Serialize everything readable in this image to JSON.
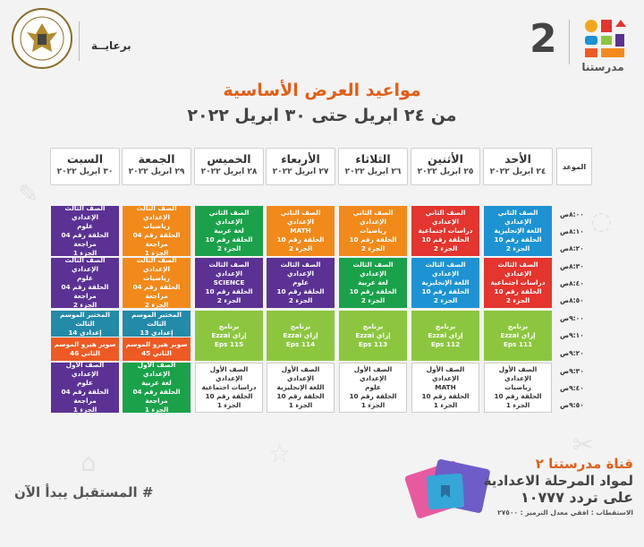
{
  "header": {
    "sponsor_label": "برعايــة",
    "brand_number": "2",
    "brand_name": "مدرستنا",
    "title": "مواعيد العرض الأساسية",
    "subtitle": "من ٢٤ ابريل حتى ٣٠ ابريل ٢٠٢٢"
  },
  "time_header": "الموعد",
  "days": [
    {
      "name": "الأحد",
      "date": "٢٤ ابريل ٢٠٢٢"
    },
    {
      "name": "الأثنين",
      "date": "٢٥ ابريل ٢٠٢٢"
    },
    {
      "name": "الثلاثاء",
      "date": "٢٦ ابريل ٢٠٢٢"
    },
    {
      "name": "الأربعاء",
      "date": "٢٧ ابريل ٢٠٢٢"
    },
    {
      "name": "الخميس",
      "date": "٢٨ ابريل ٢٠٢٢"
    },
    {
      "name": "الجمعة",
      "date": "٢٩ ابريل ٢٠٢٢"
    },
    {
      "name": "السبت",
      "date": "٣٠ ابريل ٢٠٢٢"
    }
  ],
  "times": [
    "٨:٠٠ص",
    "٨:١٠ص",
    "٨:٢٠ص",
    "٨:٣٠ص",
    "٨:٤٠ص",
    "٨:٥٠ص",
    "٩:٠٠ص",
    "٩:١٠ص",
    "٩:٢٠ص",
    "٩:٣٠ص",
    "٩:٤٠ص",
    "٩:٥٠ص"
  ],
  "slots": [
    {
      "cells": [
        {
          "color": "blue",
          "lines": [
            "الصف الثاني الإعدادي",
            "اللغة الإنجليزية",
            "الحلقة رقم 10",
            "الجزء 2"
          ]
        },
        {
          "color": "red",
          "lines": [
            "الصف الثاني الإعدادي",
            "دراسات اجتماعية",
            "الحلقة رقم 10",
            "الجزء 2"
          ]
        },
        {
          "color": "orange",
          "lines": [
            "الصف الثاني الإعدادي",
            "رياضيات",
            "الحلقة رقم 10",
            "الجزء 2"
          ]
        },
        {
          "color": "orange",
          "lines": [
            "الصف الثاني الإعدادي",
            "MATH",
            "الحلقة رقم 10",
            "الجزء 2"
          ]
        },
        {
          "color": "green",
          "lines": [
            "الصف الثاني الإعدادي",
            "لغة عربية",
            "الحلقة رقم 10",
            "الجزء 2"
          ]
        },
        {
          "color": "orange",
          "lines": [
            "الصف الثالث الإعدادي",
            "رياضيات",
            "الحلقة رقم 04 مراجعة",
            "الجزء 1"
          ]
        },
        {
          "color": "purple",
          "lines": [
            "الصف الثالث الإعدادي",
            "علوم",
            "الحلقة رقم 04 مراجعة",
            "الجزء 1"
          ]
        }
      ]
    },
    {
      "cells": [
        {
          "color": "red",
          "lines": [
            "الصف الثالث الإعدادي",
            "دراسات اجتماعية",
            "الحلقة رقم 10",
            "الجزء 2"
          ]
        },
        {
          "color": "blue",
          "lines": [
            "الصف الثالث الإعدادي",
            "اللغة الإنجليزية",
            "الحلقة رقم 10",
            "الجزء 2"
          ]
        },
        {
          "color": "green",
          "lines": [
            "الصف الثالث الإعدادي",
            "لغة عربية",
            "الحلقة رقم 10",
            "الجزء 2"
          ]
        },
        {
          "color": "purple",
          "lines": [
            "الصف الثالث الإعدادي",
            "علوم",
            "الحلقة رقم 10",
            "الجزء 2"
          ]
        },
        {
          "color": "purple",
          "lines": [
            "الصف الثالث الإعدادي",
            "SCIENCE",
            "الحلقة رقم 10",
            "الجزء 2"
          ]
        },
        {
          "color": "orange",
          "lines": [
            "الصف الثالث الإعدادي",
            "رياضيات",
            "الحلقة رقم 04 مراجعة",
            "الجزء 2"
          ]
        },
        {
          "color": "purple",
          "lines": [
            "الصف الثالث الإعدادي",
            "علوم",
            "الحلقة رقم 04 مراجعة",
            "الجزء 2"
          ]
        }
      ]
    },
    {
      "cells": [
        {
          "color": "lime",
          "lines": [
            "برنامج",
            "إزاي Ezzai",
            "Eps 111"
          ]
        },
        {
          "color": "lime",
          "lines": [
            "برنامج",
            "إزاي Ezzai",
            "Eps 112"
          ]
        },
        {
          "color": "lime",
          "lines": [
            "برنامج",
            "إزاي Ezzai",
            "Eps 113"
          ]
        },
        {
          "color": "lime",
          "lines": [
            "برنامج",
            "إزاي Ezzai",
            "Eps 114"
          ]
        },
        {
          "color": "lime",
          "lines": [
            "برنامج",
            "إزاي Ezzai",
            "Eps 115"
          ]
        },
        {
          "split": true,
          "top": {
            "color": "teal",
            "lines": [
              "المختبر الموسم الثالث",
              "إعدادي 13"
            ]
          },
          "bottom": {
            "color": "dorange",
            "lines": [
              "سوبر هيرو الموسم",
              "الثاني 45"
            ]
          }
        },
        {
          "split": true,
          "top": {
            "color": "teal",
            "lines": [
              "المختبر الموسم الثالث",
              "إعدادي 14"
            ]
          },
          "bottom": {
            "color": "dorange",
            "lines": [
              "سوبر هيرو الموسم",
              "الثاني 46"
            ]
          }
        }
      ]
    },
    {
      "cells": [
        {
          "color": "white",
          "lines": [
            "الصف الأول الإعدادي",
            "رياضيات",
            "الحلقة رقم 10",
            "الجزء 1"
          ]
        },
        {
          "color": "white",
          "lines": [
            "الصف الأول الإعدادي",
            "MATH",
            "الحلقة رقم 10",
            "الجزء 1"
          ]
        },
        {
          "color": "white",
          "lines": [
            "الصف الأول الإعدادي",
            "علوم",
            "الحلقة رقم 10",
            "الجزء 1"
          ]
        },
        {
          "color": "white",
          "lines": [
            "الصف الأول الإعدادي",
            "اللغة الإنجليزية",
            "الحلقة رقم 10",
            "الجزء 1"
          ]
        },
        {
          "color": "white",
          "lines": [
            "الصف الأول الإعدادي",
            "دراسات اجتماعية",
            "الحلقة رقم 10",
            "الجزء 1"
          ]
        },
        {
          "color": "green",
          "lines": [
            "الصف الأول الإعدادي",
            "لغة عربية",
            "الحلقة رقم 04 مراجعة",
            "الجزء 1"
          ]
        },
        {
          "color": "purple",
          "lines": [
            "الصف الأول الإعدادي",
            "علوم",
            "الحلقة رقم 04 مراجعة",
            "الجزء 1"
          ]
        }
      ]
    }
  ],
  "footer": {
    "hashtag": "# المستقبل يبدأ الآن",
    "channel_line1": "قناة مدرستنا ٢",
    "channel_line2": "لمواد المرحلة الاعدادية",
    "channel_line3": "على تردد ١٠٧٧٧",
    "reception": "الاستقطاب : افقي معدل الترميز : ٢٧٥٠٠"
  },
  "colors": {
    "blue": "#1d93d3",
    "red": "#e4352f",
    "orange": "#f28a1b",
    "green": "#1ba14a",
    "purple": "#5b3293",
    "lime": "#8cc63f",
    "teal": "#238aa8",
    "dorange": "#ee5a24",
    "title_orange": "#e0601a"
  }
}
